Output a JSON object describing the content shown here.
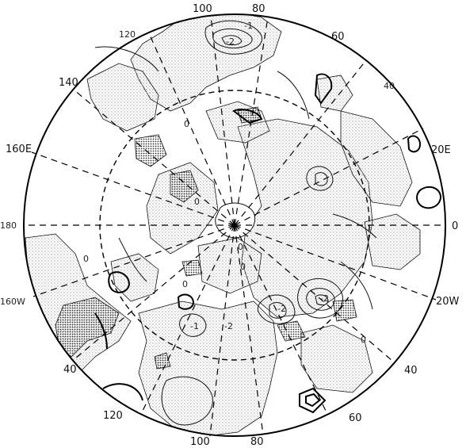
{
  "projection": "polar-stereographic (north pole centered)",
  "lon_labels": {
    "top_100": "100",
    "top_80": "80",
    "bot_100": "100",
    "bot_80": "80",
    "l120_top": "120",
    "l140": "140",
    "l160e": "160E",
    "l180": "180",
    "l160w": "160W",
    "l40_bot_left": "40",
    "l120_bot": "120",
    "r60_top": "60",
    "r40_top": "40",
    "r20e": "20E",
    "r0": "0",
    "r20w": "20W",
    "r40_bot": "40",
    "r60_bot": "60"
  },
  "contour_labels": {
    "c1": "-2",
    "c2": "-1",
    "c3": "0",
    "c4": "0",
    "c5": "0",
    "c6": "0",
    "c7": "-2",
    "c8": "-2",
    "c9": "-2",
    "c10": "0",
    "c11": "0",
    "c12": "-1",
    "c13": "0"
  },
  "colors": {
    "ink": "#111111",
    "light_stipple": "#cfcfcf",
    "dark_stipple": "#555555"
  }
}
